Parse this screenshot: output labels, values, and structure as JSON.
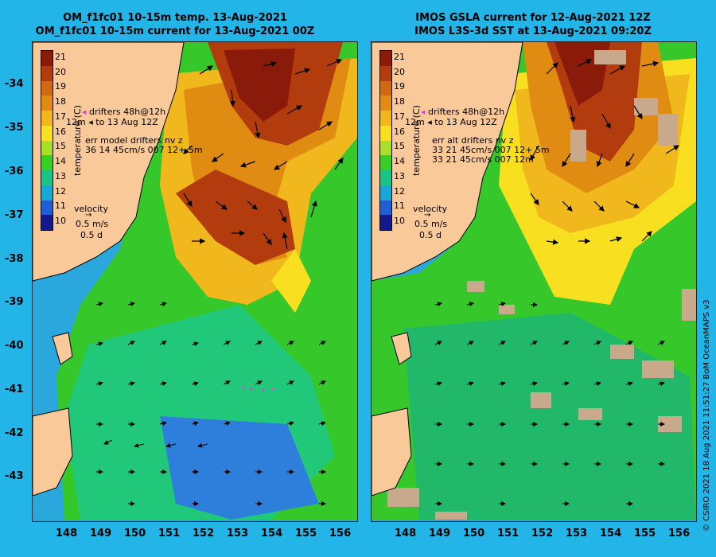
{
  "left_panel": {
    "title_line1": "OM_f1fc01 10-15m temp. 13-Aug-2021",
    "title_line2": "OM_f1fc01 10-15m current for 13-Aug-2021 00Z",
    "legend": {
      "drifters_line": "drifters 48h@12h",
      "to_line_prefix": "12m",
      "to_line": "to 13 Aug 12Z",
      "err_line": "err model drifters nv z",
      "err_values_1": "36 14 45cm/s 007 12+ 5m",
      "err_values_2": ""
    },
    "velocity": {
      "title": "velocity",
      "speed": "0.5 m/s",
      "days": "0.5 d"
    }
  },
  "right_panel": {
    "title_line1": "IMOS GSLA current for 12-Aug-2021 12Z",
    "title_line2": "IMOS L3S-3d SST at 13-Aug-2021 09:20Z",
    "legend": {
      "drifters_line": "drifters 48h@12h",
      "to_line_prefix": "12m",
      "to_line": "to 13 Aug 12Z",
      "err_line": "err alt drifters nv z",
      "err_values_1": "33 21 45cm/s 007 12+ 5m",
      "err_values_2": "33 21 45cm/s 007 12m"
    },
    "velocity": {
      "title": "velocity",
      "speed": "0.5 m/s",
      "days": "0.5 d"
    }
  },
  "colorbar": {
    "label": "temperature (C)",
    "ticks": [
      "21",
      "20",
      "19",
      "18",
      "17",
      "16",
      "15",
      "14",
      "13",
      "12",
      "11",
      "10"
    ],
    "colors": [
      "#8a1a0a",
      "#b23c0e",
      "#cf6a12",
      "#e08c12",
      "#f0b81c",
      "#f8e020",
      "#a8e028",
      "#36d024",
      "#18c488",
      "#18a8d8",
      "#1f5ed8",
      "#141a8c"
    ]
  },
  "axes": {
    "lat_ticks": [
      "-34",
      "-35",
      "-36",
      "-37",
      "-38",
      "-39",
      "-40",
      "-41",
      "-42",
      "-43"
    ],
    "lon_ticks": [
      "148",
      "149",
      "150",
      "151",
      "152",
      "153",
      "154",
      "155",
      "156"
    ]
  },
  "credit": "© CSIRO 2021  18 Aug 2021 11:51:27 BoM OceanMAPS v3"
}
